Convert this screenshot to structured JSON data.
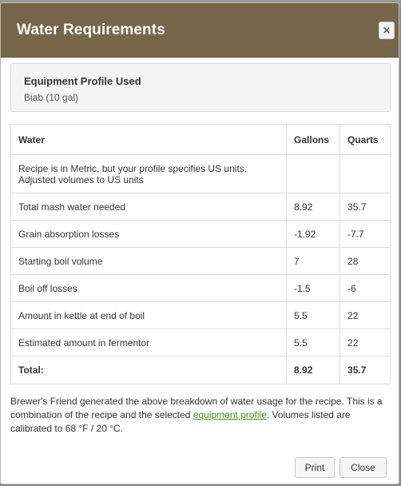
{
  "modal": {
    "title": "Water Requirements",
    "close_icon": "×"
  },
  "profile": {
    "title": "Equipment Profile Used",
    "value": "Biab (10 gal)"
  },
  "table": {
    "headers": [
      "Water",
      "Gallons",
      "Quarts"
    ],
    "note_line1": "Recipe is in Metric, but your profile specifies US units.",
    "note_line2": "Adjusted volumes to US units",
    "rows": [
      {
        "label": "Total mash water needed",
        "gallons": "8.92",
        "quarts": "35.7"
      },
      {
        "label": "Grain absorption losses",
        "gallons": "-1.92",
        "quarts": "-7.7"
      },
      {
        "label": "Starting boil volume",
        "gallons": "7",
        "quarts": "28"
      },
      {
        "label": "Boil off losses",
        "gallons": "-1.5",
        "quarts": "-6"
      },
      {
        "label": "Amount in kettle at end of boil",
        "gallons": "5.5",
        "quarts": "22"
      },
      {
        "label": "Estimated amount in fermentor",
        "gallons": "5.5",
        "quarts": "22"
      }
    ],
    "total": {
      "label": "Total:",
      "gallons": "8.92",
      "quarts": "35.7"
    }
  },
  "footnote": {
    "before_link": "Brewer's Friend generated the above breakdown of water usage for the recipe. This is a combination of the recipe and the selected ",
    "link_text": "equipment profile",
    "after_link": ". Volumes listed are calibrated to 68 °F / 20 °C."
  },
  "buttons": {
    "print": "Print",
    "close": "Close"
  },
  "colors": {
    "header_bg": "#77664a",
    "link": "#4e8a1b"
  }
}
